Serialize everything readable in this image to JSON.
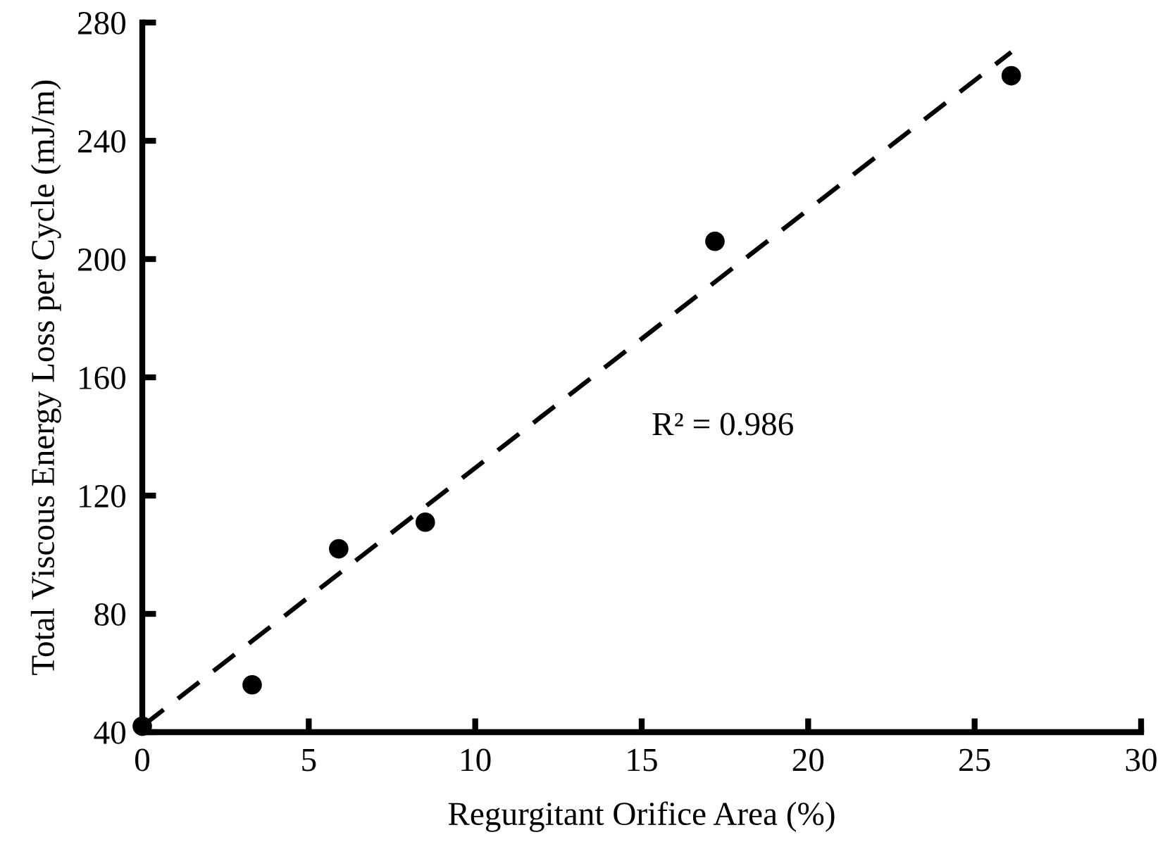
{
  "chart_data": {
    "type": "scatter",
    "xlabel": "Regurgitant Orifice Area (%)",
    "ylabel": "Total Viscous Energy Loss per Cycle (mJ/m)",
    "x": [
      0,
      3.3,
      5.9,
      8.5,
      17.2,
      26.1
    ],
    "series": [
      {
        "color": "#000000",
        "marker": "circle",
        "values": [
          42,
          56,
          102,
          111,
          206,
          262
        ]
      },
      {
        "type": "line",
        "color": "#000000",
        "line_style": "dashed",
        "marker": "none",
        "x": [
          0,
          26.1
        ],
        "values": [
          42,
          270
        ]
      }
    ],
    "annotations": [
      "R² = 0.986"
    ],
    "xlim": [
      0,
      30
    ],
    "xticks": [
      0,
      5,
      10,
      15,
      20,
      25,
      30
    ],
    "ylim": [
      40,
      280
    ],
    "yticks": [
      40,
      80,
      120,
      160,
      200,
      240,
      280
    ],
    "grid": false,
    "legend": false
  }
}
